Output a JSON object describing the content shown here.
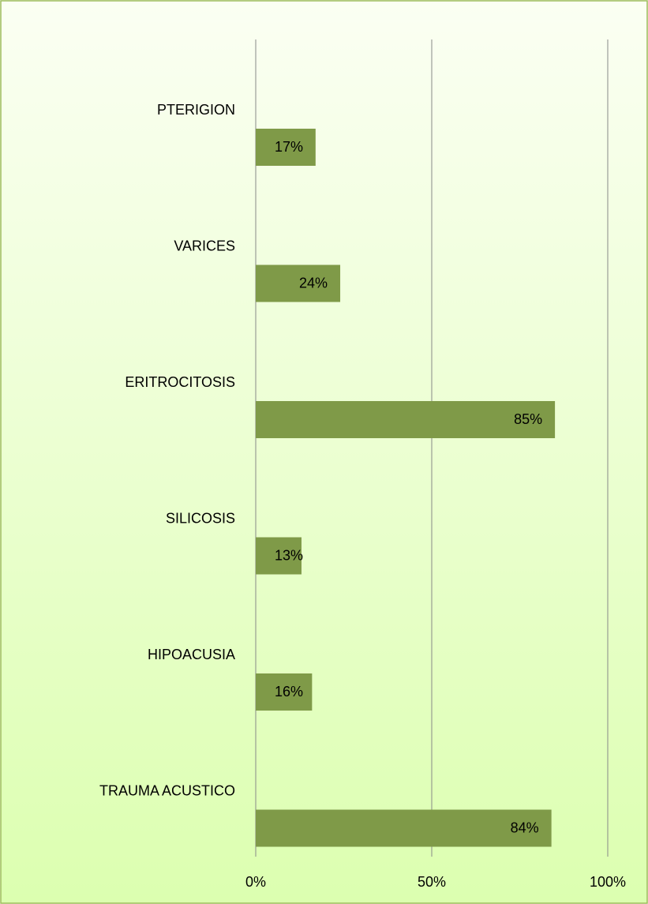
{
  "chart_data": {
    "type": "hbar",
    "categories": [
      "PTERIGION",
      "VARICES",
      "ERITROCITOSIS",
      "SILICOSIS",
      "HIPOACUSIA",
      "TRAUMA ACUSTICO"
    ],
    "values": [
      17,
      24,
      85,
      13,
      16,
      84
    ],
    "value_labels": [
      "17%",
      "24%",
      "85%",
      "13%",
      "16%",
      "84%"
    ],
    "color": "#7f9a48",
    "xlim": [
      0,
      100
    ],
    "xticks": [
      {
        "value": 0,
        "label": "0%"
      },
      {
        "value": 50,
        "label": "50%"
      },
      {
        "value": 100,
        "label": "100%"
      }
    ],
    "grid": true
  }
}
